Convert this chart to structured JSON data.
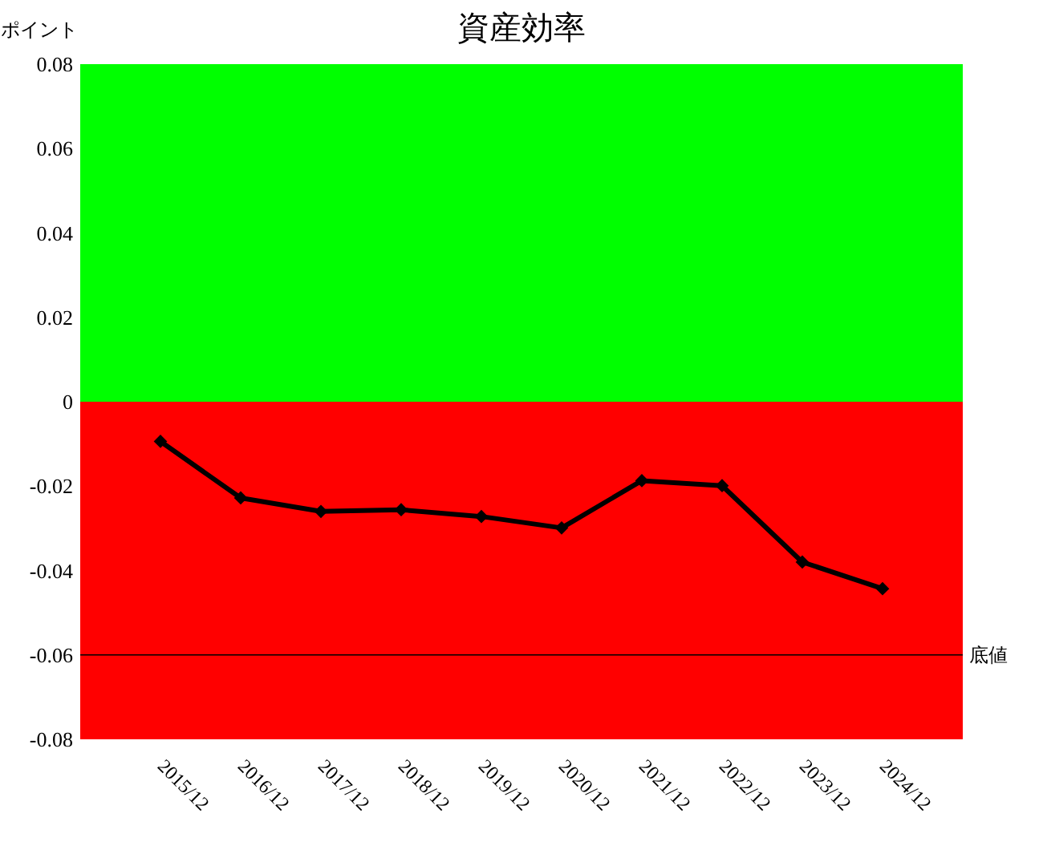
{
  "chart_data": {
    "type": "line",
    "title": "資産効率",
    "ylabel": "ポイント",
    "categories": [
      "2015/12",
      "2016/12",
      "2017/12",
      "2018/12",
      "2019/12",
      "2020/12",
      "2021/12",
      "2022/12",
      "2023/12",
      "2024/12"
    ],
    "series": [
      {
        "color": "#000000",
        "values": [
          -0.0094,
          -0.0228,
          -0.026,
          -0.0256,
          -0.0272,
          -0.0299,
          -0.0187,
          -0.0199,
          -0.038,
          -0.0443
        ]
      }
    ],
    "ylim": [
      -0.08,
      0.08
    ],
    "yticks": [
      -0.08,
      -0.06,
      -0.04,
      -0.02,
      0,
      0.02,
      0.04,
      0.06,
      0.08
    ],
    "bands": [
      {
        "axis": "y",
        "from": 0,
        "to": 0.08,
        "color": "#00ff00"
      },
      {
        "axis": "y",
        "from": -0.08,
        "to": 0,
        "color": "#ff0000"
      }
    ],
    "ref_lines": [
      {
        "axis": "y",
        "value": -0.06,
        "label": "底値",
        "color": "#000000"
      }
    ],
    "marker": "diamond",
    "line_style": "solid",
    "grid": false
  }
}
